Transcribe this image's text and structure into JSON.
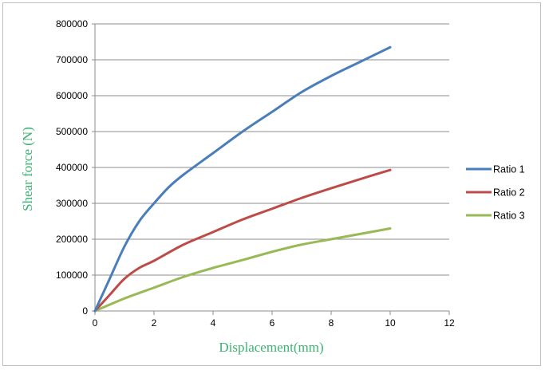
{
  "chart_data": {
    "type": "line",
    "title": "",
    "xlabel": "Displacement(mm)",
    "ylabel": "Shear force (N)",
    "xlim": [
      0,
      12
    ],
    "ylim": [
      0,
      800000
    ],
    "xticks": [
      0,
      2,
      4,
      6,
      8,
      10,
      12
    ],
    "yticks": [
      0,
      100000,
      200000,
      300000,
      400000,
      500000,
      600000,
      700000,
      800000
    ],
    "grid": "horizontal",
    "legend_position": "right",
    "axis_label_color": "#3cb371",
    "series": [
      {
        "name": "Ratio 1",
        "color": "#4a7ebb",
        "x": [
          0,
          0.5,
          1,
          1.5,
          2,
          2.5,
          3,
          4,
          5,
          6,
          7,
          8,
          9,
          10
        ],
        "y": [
          0,
          90000,
          180000,
          250000,
          300000,
          345000,
          380000,
          440000,
          500000,
          555000,
          610000,
          655000,
          695000,
          735000
        ]
      },
      {
        "name": "Ratio 2",
        "color": "#be4b48",
        "x": [
          0,
          0.5,
          1,
          1.5,
          2,
          3,
          4,
          5,
          6,
          7,
          8,
          9,
          10
        ],
        "y": [
          0,
          45000,
          90000,
          120000,
          140000,
          185000,
          220000,
          255000,
          285000,
          315000,
          342000,
          368000,
          393000
        ]
      },
      {
        "name": "Ratio 3",
        "color": "#98b954",
        "x": [
          0,
          1,
          2,
          3,
          4,
          5,
          6,
          7,
          8,
          9,
          10
        ],
        "y": [
          0,
          35000,
          65000,
          95000,
          120000,
          142000,
          165000,
          185000,
          200000,
          215000,
          230000
        ]
      }
    ]
  }
}
